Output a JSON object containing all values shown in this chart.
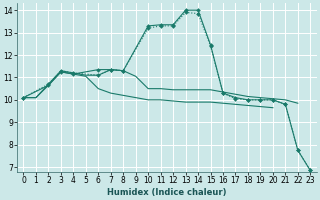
{
  "xlabel": "Humidex (Indice chaleur)",
  "bg_color": "#cce8e8",
  "grid_color": "#ffffff",
  "line_color": "#1a7a6a",
  "xlim": [
    -0.5,
    23.5
  ],
  "ylim": [
    6.8,
    14.3
  ],
  "xticks": [
    0,
    1,
    2,
    3,
    4,
    5,
    6,
    7,
    8,
    9,
    10,
    11,
    12,
    13,
    14,
    15,
    16,
    17,
    18,
    19,
    20,
    21,
    22,
    23
  ],
  "yticks": [
    7,
    8,
    9,
    10,
    11,
    12,
    13,
    14
  ],
  "series": [
    {
      "name": "upper_band",
      "x": [
        0,
        1,
        2,
        3,
        4,
        5,
        6,
        7,
        8,
        9,
        10,
        11,
        12,
        13,
        14,
        15,
        16,
        17,
        18,
        19,
        20,
        21,
        22
      ],
      "y": [
        10.1,
        10.1,
        10.7,
        11.3,
        11.2,
        11.1,
        11.1,
        11.35,
        11.3,
        11.05,
        10.5,
        10.5,
        10.45,
        10.45,
        10.45,
        10.45,
        10.35,
        10.25,
        10.15,
        10.1,
        10.05,
        10.0,
        9.85
      ],
      "marker": false,
      "linestyle": "-"
    },
    {
      "name": "lower_band",
      "x": [
        0,
        1,
        2,
        3,
        4,
        5,
        6,
        7,
        8,
        9,
        10,
        11,
        12,
        13,
        14,
        15,
        16,
        17,
        18,
        19,
        20
      ],
      "y": [
        10.1,
        10.1,
        10.65,
        11.25,
        11.15,
        11.05,
        10.5,
        10.3,
        10.2,
        10.1,
        10.0,
        10.0,
        9.95,
        9.9,
        9.9,
        9.9,
        9.85,
        9.8,
        9.75,
        9.7,
        9.65
      ],
      "marker": false,
      "linestyle": "-"
    },
    {
      "name": "dotted_line",
      "x": [
        0,
        2,
        3,
        4,
        6,
        7,
        8,
        10,
        11,
        12,
        13,
        14,
        15,
        16,
        17,
        18,
        19,
        20,
        21,
        22,
        23
      ],
      "y": [
        10.1,
        10.7,
        11.3,
        11.2,
        11.1,
        11.35,
        11.3,
        13.2,
        13.3,
        13.3,
        13.9,
        13.85,
        12.4,
        10.3,
        10.05,
        10.0,
        10.0,
        10.0,
        9.8,
        7.75,
        6.85
      ],
      "marker": true,
      "linestyle": "dotted"
    },
    {
      "name": "solid_markers",
      "x": [
        0,
        2,
        3,
        4,
        6,
        7,
        8,
        10,
        11,
        12,
        13,
        14,
        15,
        16,
        17,
        18,
        19,
        20,
        21,
        22,
        23
      ],
      "y": [
        10.1,
        10.65,
        11.25,
        11.15,
        11.35,
        11.35,
        11.3,
        13.3,
        13.35,
        13.35,
        14.0,
        14.0,
        12.45,
        10.3,
        10.1,
        10.0,
        10.0,
        10.0,
        9.8,
        7.75,
        6.85
      ],
      "marker": true,
      "linestyle": "-"
    }
  ]
}
